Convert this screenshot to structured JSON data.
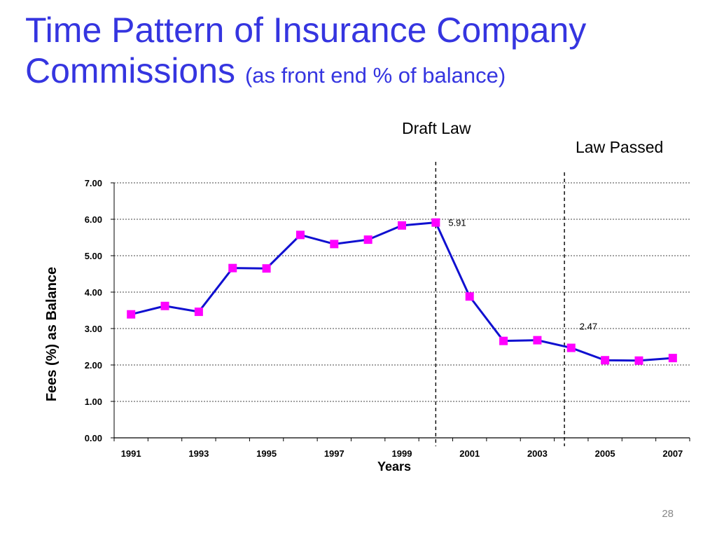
{
  "slide": {
    "title_main": "Time Pattern of Insurance Company Commissions",
    "title_sub": "(as front end % of balance)",
    "page_number": "28"
  },
  "annotations": {
    "draft_law": "Draft Law",
    "law_passed": "Law Passed"
  },
  "chart_data": {
    "type": "line",
    "x": [
      1991,
      1992,
      1993,
      1994,
      1995,
      1996,
      1997,
      1998,
      1999,
      2000,
      2001,
      2002,
      2003,
      2004,
      2005,
      2006,
      2007
    ],
    "series": [
      {
        "values": [
          3.39,
          3.62,
          3.46,
          4.66,
          4.65,
          5.57,
          5.32,
          5.44,
          5.83,
          5.91,
          3.88,
          2.66,
          2.68,
          2.47,
          2.13,
          2.12,
          2.19
        ],
        "color": "#1010d0",
        "marker_color": "#ff00ff"
      }
    ],
    "x_tick_labels": [
      "1991",
      "1993",
      "1995",
      "1997",
      "1999",
      "2001",
      "2003",
      "2005",
      "2007"
    ],
    "y_tick_labels": [
      "0.00",
      "1.00",
      "2.00",
      "3.00",
      "4.00",
      "5.00",
      "6.00",
      "7.00"
    ],
    "ylim": [
      0,
      7
    ],
    "xlabel": "Years",
    "ylabel": "Fees (%) as Balance",
    "data_labels": [
      {
        "year": 2000,
        "text": "5.91"
      },
      {
        "year": 2004,
        "text": "2.47"
      }
    ],
    "vertical_markers": [
      2000,
      2003.8
    ],
    "grid": "horizontal-dashed"
  }
}
